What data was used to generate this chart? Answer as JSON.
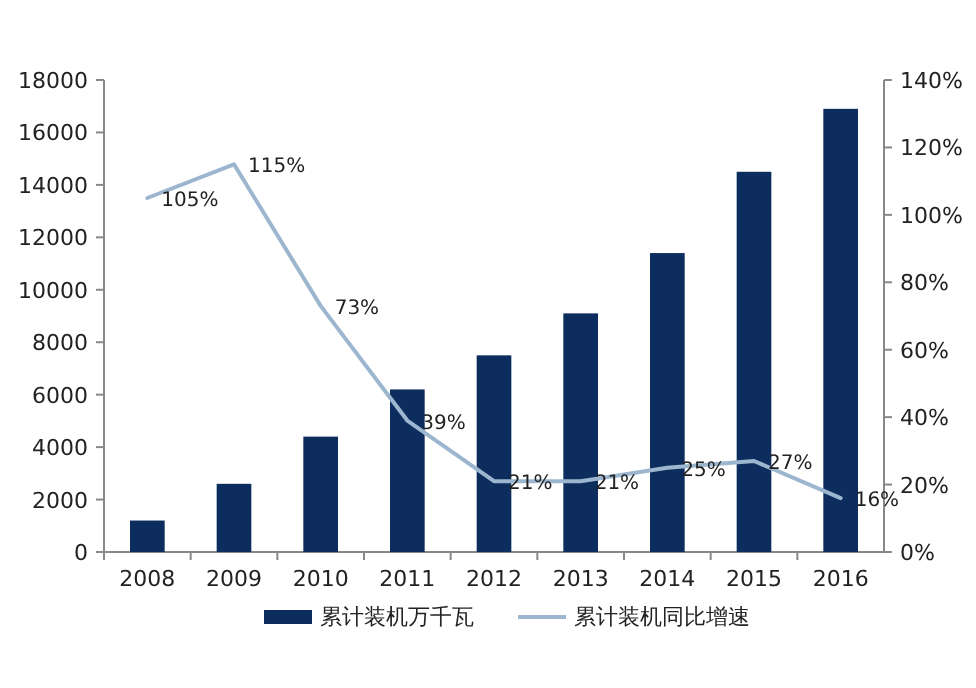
{
  "chart_data": {
    "type": "bar",
    "categories": [
      "2008",
      "2009",
      "2010",
      "2011",
      "2012",
      "2013",
      "2014",
      "2015",
      "2016"
    ],
    "series": [
      {
        "name": "累计装机万千瓦",
        "color": "#0d2d5e",
        "values": [
          1200,
          2600,
          4400,
          6200,
          7500,
          9100,
          11400,
          14500,
          16900
        ]
      },
      {
        "name": "累计装机同比增速",
        "type": "line",
        "axis": "y2",
        "color": "#9db6cf",
        "values": [
          105,
          115,
          73,
          39,
          21,
          21,
          25,
          27,
          16
        ],
        "value_labels": [
          "105%",
          "115%",
          "73%",
          "39%",
          "21%",
          "21%",
          "25%",
          "27%",
          "16%"
        ]
      }
    ],
    "ylim": [
      0,
      18000
    ],
    "yticks": [
      0,
      2000,
      4000,
      6000,
      8000,
      10000,
      12000,
      14000,
      16000,
      18000
    ],
    "y2lim": [
      0,
      140
    ],
    "y2ticks": [
      {
        "value": 0,
        "label": "0%"
      },
      {
        "value": 20,
        "label": "20%"
      },
      {
        "value": 40,
        "label": "40%"
      },
      {
        "value": 60,
        "label": "60%"
      },
      {
        "value": 80,
        "label": "80%"
      },
      {
        "value": 100,
        "label": "100%"
      },
      {
        "value": 120,
        "label": "120%"
      },
      {
        "value": 140,
        "label": "140%"
      }
    ],
    "legend": "bottom"
  }
}
